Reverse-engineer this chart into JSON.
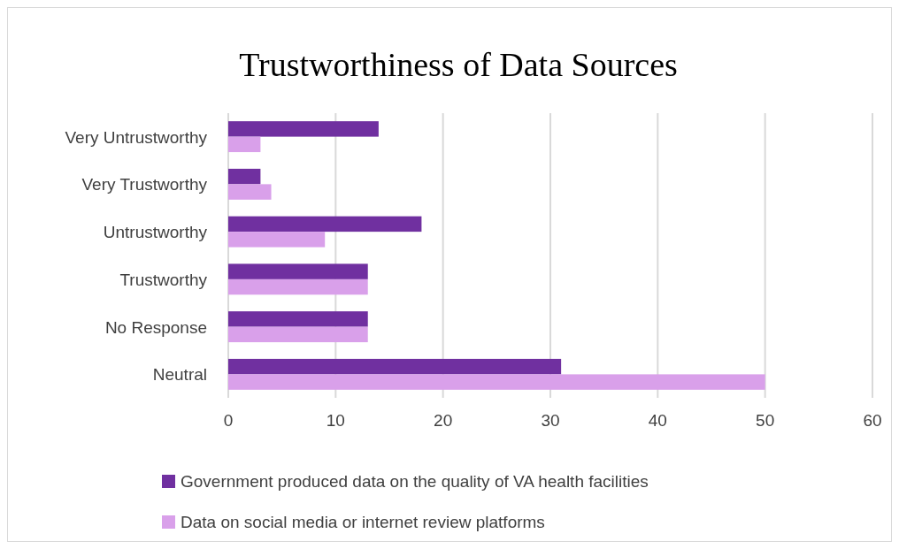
{
  "chart_data": {
    "type": "bar",
    "orientation": "horizontal",
    "title": "Trustworthiness of Data Sources",
    "categories": [
      "Very Untrustworthy",
      "Very Trustworthy",
      "Untrustworthy",
      "Trustworthy",
      "No Response",
      "Neutral"
    ],
    "series": [
      {
        "name": "Government produced data on the quality of VA health facilities",
        "color": "#7030a0",
        "values": [
          14,
          3,
          18,
          13,
          13,
          31
        ]
      },
      {
        "name": "Data on social media or internet review platforms",
        "color": "#d9a0ea",
        "values": [
          3,
          4,
          9,
          13,
          13,
          50
        ]
      }
    ],
    "xlim": [
      0,
      60
    ],
    "xticks": [
      0,
      10,
      20,
      30,
      40,
      50,
      60
    ],
    "grid": "x",
    "legend": "bottom"
  }
}
